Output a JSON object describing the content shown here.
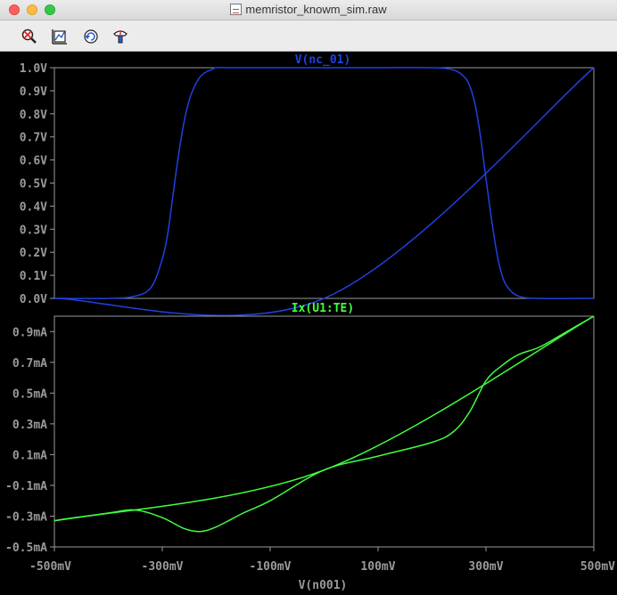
{
  "window": {
    "title": "memristor_knowm_sim.raw",
    "toolbar": [
      "zoom-area-icon",
      "autorange-icon",
      "undo-zoom-icon",
      "probe-icon"
    ]
  },
  "chart_data": [
    {
      "type": "line",
      "title": "V(nc_01)",
      "color": "#2040e0",
      "xlim": [
        -500,
        500
      ],
      "ylim": [
        0,
        1.0
      ],
      "y_tick_values": [
        0.0,
        0.1,
        0.2,
        0.3,
        0.4,
        0.5,
        0.6,
        0.7,
        0.8,
        0.9,
        1.0
      ],
      "y_ticks": [
        "0.0V",
        "0.1V",
        "0.2V",
        "0.3V",
        "0.4V",
        "0.5V",
        "0.6V",
        "0.7V",
        "0.8V",
        "0.9V",
        "1.0V"
      ],
      "series": [
        {
          "x": [
            -500,
            -400,
            -350,
            -320,
            -300,
            -290,
            -280,
            -270,
            -260,
            -250,
            -240,
            -230,
            -220,
            -210,
            -200,
            -180,
            -150,
            -100,
            0,
            100,
            200,
            240,
            260,
            270,
            280,
            290,
            300,
            310,
            320,
            330,
            340,
            360,
            400,
            500
          ],
          "y": [
            0,
            0,
            0.01,
            0.05,
            0.17,
            0.28,
            0.45,
            0.62,
            0.76,
            0.86,
            0.92,
            0.96,
            0.98,
            0.99,
            1.0,
            1.0,
            1.0,
            1.0,
            1.0,
            1.0,
            1.0,
            0.99,
            0.96,
            0.92,
            0.84,
            0.7,
            0.52,
            0.35,
            0.2,
            0.1,
            0.05,
            0.01,
            0,
            0
          ]
        },
        {
          "x": [
            -500,
            0,
            500
          ],
          "y": [
            0,
            0,
            1.0
          ]
        }
      ]
    },
    {
      "type": "line",
      "title": "Ix(U1:TE)",
      "color": "#40ff40",
      "xlabel": "V(n001)",
      "xlim": [
        -500,
        500
      ],
      "ylim": [
        -0.5,
        1.0
      ],
      "x_ticks": [
        "-500mV",
        "-300mV",
        "-100mV",
        "100mV",
        "300mV",
        "500mV"
      ],
      "x_tick_values": [
        -500,
        -300,
        -100,
        100,
        300,
        500
      ],
      "y_tick_values": [
        0.9,
        0.7,
        0.5,
        0.3,
        0.1,
        -0.1,
        -0.3,
        -0.5
      ],
      "y_ticks": [
        "0.9mA",
        "0.7mA",
        "0.5mA",
        "0.3mA",
        "0.1mA",
        "-0.1mA",
        "-0.3mA",
        "-0.5mA"
      ],
      "series": [
        {
          "x": [
            -500,
            0,
            500
          ],
          "y": [
            -0.33,
            0,
            1.0
          ]
        },
        {
          "x": [
            -500,
            -400,
            -350,
            -300,
            -260,
            -230,
            -200,
            -150,
            -100,
            0,
            100,
            200,
            240,
            270,
            300,
            330,
            360,
            400,
            450,
            500
          ],
          "y": [
            -0.33,
            -0.28,
            -0.26,
            -0.31,
            -0.38,
            -0.4,
            -0.37,
            -0.28,
            -0.2,
            0,
            0.09,
            0.18,
            0.25,
            0.38,
            0.58,
            0.68,
            0.75,
            0.8,
            0.9,
            1.0
          ]
        }
      ]
    }
  ]
}
